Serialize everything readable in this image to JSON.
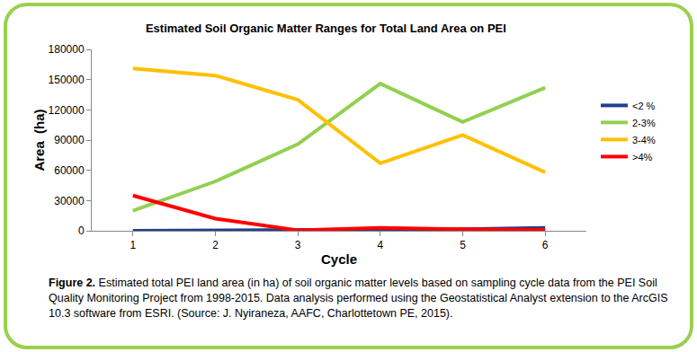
{
  "chart_data": {
    "type": "line",
    "title": "Estimated Soil Organic Matter Ranges for Total Land Area on PEI",
    "x_label": "Cycle",
    "y_label": "Area  (ha)",
    "categories": [
      "1",
      "2",
      "3",
      "4",
      "5",
      "6"
    ],
    "series": [
      {
        "name": "<2 %",
        "color": "#1f3f8f",
        "values": [
          0,
          500,
          500,
          1000,
          1500,
          3000
        ]
      },
      {
        "name": "2-3%",
        "color": "#92d050",
        "values": [
          20000,
          49000,
          86000,
          146000,
          108000,
          142000
        ]
      },
      {
        "name": "3-4%",
        "color": "#ffc000",
        "values": [
          161000,
          154000,
          130000,
          67000,
          95000,
          58000
        ]
      },
      {
        "name": ">4%",
        "color": "#ff0000",
        "values": [
          35000,
          12000,
          500,
          3000,
          1500,
          1000
        ]
      }
    ],
    "ylim": [
      0,
      180000
    ],
    "yticks": [
      0,
      30000,
      60000,
      90000,
      120000,
      150000,
      180000
    ],
    "grid": false,
    "legend": "right",
    "caption": {
      "label": "Figure 2.",
      "text": "Estimated total PEI land area (in ha) of soil organic matter levels based on sampling cycle data from the PEI Soil Quality Monitoring Project from 1998-2015. Data analysis performed using the Geostatistical Analyst extension to the ArcGIS 10.3 software from ESRI. (Source: J. Nyiraneza, AAFC, Charlottetown PE, 2015)."
    }
  }
}
